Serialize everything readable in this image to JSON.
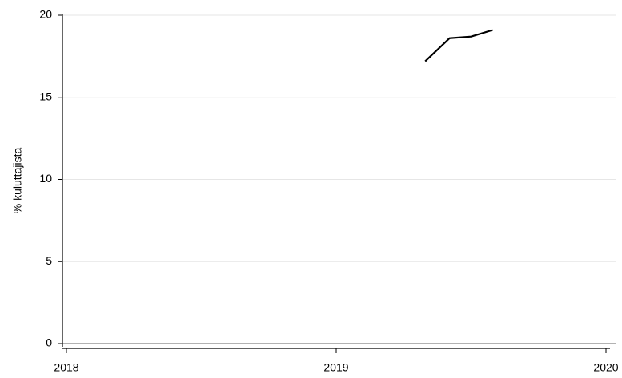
{
  "chart_data": {
    "type": "line",
    "title": "",
    "xlabel": "",
    "ylabel": "% kuluttajista",
    "xlim": [
      2018,
      2020
    ],
    "ylim": [
      0,
      20
    ],
    "x_ticks": [
      2018,
      2019,
      2020
    ],
    "x_tick_labels": [
      "2018",
      "2019",
      "2020"
    ],
    "y_ticks": [
      0,
      5,
      10,
      15,
      20
    ],
    "y_tick_labels": [
      "0",
      "5",
      "10",
      "15",
      "20"
    ],
    "grid": true,
    "legend": "none",
    "series": [
      {
        "x": [
          2019.33,
          2019.42,
          2019.5,
          2019.58
        ],
        "values": [
          17.2,
          18.6,
          18.7,
          19.1
        ],
        "color": "#000000"
      }
    ]
  }
}
